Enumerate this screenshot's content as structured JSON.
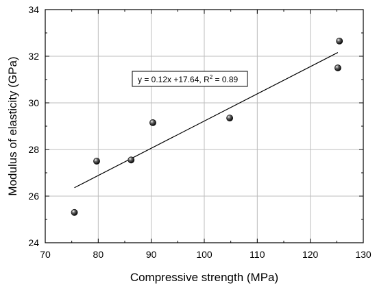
{
  "chart_data": {
    "type": "scatter",
    "xlabel": "Compressive strength (MPa)",
    "ylabel": "Modulus of elasticity (GPa)",
    "xlim": [
      70,
      130
    ],
    "ylim": [
      24,
      34
    ],
    "x_ticks": [
      "70",
      "80",
      "90",
      "100",
      "110",
      "120",
      "130"
    ],
    "y_ticks": [
      "24",
      "26",
      "28",
      "30",
      "32",
      "34"
    ],
    "grid": true,
    "series": [
      {
        "points": [
          {
            "x": 75.5,
            "y": 25.3
          },
          {
            "x": 79.7,
            "y": 27.5
          },
          {
            "x": 86.2,
            "y": 27.55
          },
          {
            "x": 90.3,
            "y": 29.15
          },
          {
            "x": 104.8,
            "y": 29.35
          },
          {
            "x": 125.2,
            "y": 31.5
          },
          {
            "x": 125.5,
            "y": 32.65
          }
        ]
      }
    ],
    "fit": {
      "x_range": [
        75.5,
        125.2
      ],
      "y_range": [
        26.36,
        32.16
      ]
    },
    "annotation": {
      "prefix": "y = 0.12x +17.64, R",
      "sup": "2",
      "suffix": " = 0.89"
    },
    "colors": {
      "marker": "#000000",
      "grid": "#bdbdbd"
    }
  }
}
